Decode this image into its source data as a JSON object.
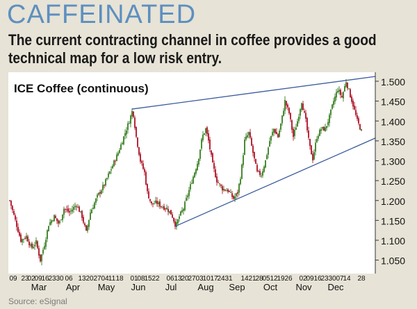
{
  "header": {
    "title": "CAFFEINATED",
    "subtitle": "The current contracting channel in coffee provides a good technical map for a low risk entry."
  },
  "source": "Source: eSignal",
  "colors": {
    "accent": "#5d8fc0",
    "background": "#e7e3d6",
    "plot_bg": "#ffffff",
    "candle_up": "#4a8a36",
    "candle_down": "#b4283a",
    "trendline": "#3a5a9a"
  },
  "chart_data": {
    "type": "candlestick",
    "title": "ICE Coffee (continuous)",
    "ylim": [
      1.0,
      1.52
    ],
    "yticks": [
      "1.500",
      "1.450",
      "1.400",
      "1.350",
      "1.300",
      "1.250",
      "1.200",
      "1.150",
      "1.100",
      "1.050"
    ],
    "ytick_values": [
      1.5,
      1.45,
      1.4,
      1.35,
      1.3,
      1.25,
      1.2,
      1.15,
      1.1,
      1.05
    ],
    "day_labels": [
      "09",
      "23",
      "02",
      "09",
      "16",
      "23",
      "30",
      "06",
      "13",
      "20",
      "27",
      "04",
      "11",
      "18",
      "01",
      "08",
      "15",
      "22",
      "06",
      "13",
      "20",
      "27",
      "03",
      "10",
      "17",
      "24",
      "31",
      "14",
      "21",
      "28",
      "05",
      "12",
      "19",
      "26",
      "02",
      "09",
      "16",
      "23",
      "30",
      "07",
      "14",
      "28"
    ],
    "month_labels": [
      "Mar",
      "Apr",
      "May",
      "Jun",
      "Jul",
      "Aug",
      "Sep",
      "Oct",
      "Nov",
      "Dec"
    ],
    "key_points": [
      {
        "date": "early Feb",
        "value": 1.2
      },
      {
        "date": "Mar low",
        "value": 1.05
      },
      {
        "date": "Jun high",
        "value": 1.43
      },
      {
        "date": "Jul low",
        "value": 1.135
      },
      {
        "date": "Aug high",
        "value": 1.38
      },
      {
        "date": "Sep low",
        "value": 1.205
      },
      {
        "date": "Oct high",
        "value": 1.45
      },
      {
        "date": "Nov low",
        "value": 1.305
      },
      {
        "date": "Dec high",
        "value": 1.5
      },
      {
        "date": "late Dec",
        "value": 1.375
      }
    ],
    "trendlines": [
      {
        "name": "upper",
        "from_value": 1.43,
        "to_value": 1.512
      },
      {
        "name": "lower",
        "from_value": 1.135,
        "to_value": 1.357
      }
    ]
  }
}
